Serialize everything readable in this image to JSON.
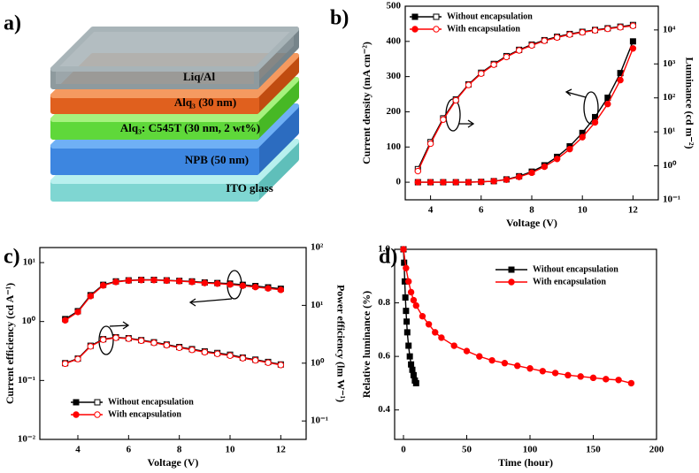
{
  "device": {
    "label": "a)",
    "layers": [
      "Liq/Al",
      "Alq₃ (30 nm)",
      "Alq₃: C545T (30 nm, 2 wt%)",
      "NPB (50 nm)",
      "ITO glass"
    ]
  },
  "chart_data": [
    {
      "type": "line",
      "label": "b)",
      "xlabel": "Voltage (V)",
      "ylabel": "Current density (mA cm⁻²)",
      "y2label": "Luminance (cd m⁻²)",
      "x": [
        3.5,
        4,
        4.5,
        5,
        5.5,
        6,
        6.5,
        7,
        7.5,
        8,
        8.5,
        9,
        9.5,
        10,
        10.5,
        11,
        11.5,
        12
      ],
      "xlim": [
        3,
        13
      ],
      "xticks": [
        4,
        6,
        8,
        10,
        12
      ],
      "xscale": "linear",
      "ylim": [
        -50,
        500
      ],
      "yticks": [
        0,
        100,
        200,
        300,
        400,
        500
      ],
      "yscale": "linear",
      "y2lim": [
        0.1,
        50000
      ],
      "y2scale": "log",
      "y2ticks": [
        {
          "value": 0.1,
          "label": "10⁻¹"
        },
        {
          "value": 1,
          "label": "10⁰"
        },
        {
          "value": 10,
          "label": "10¹"
        },
        {
          "value": 100,
          "label": "10²"
        },
        {
          "value": 1000,
          "label": "10³"
        },
        {
          "value": 10000,
          "label": "10⁴"
        }
      ],
      "legend": "upper left",
      "series": [
        {
          "name": "Without encapsulation",
          "color": "#000000",
          "marker": "square",
          "filled": true,
          "values": [
            0,
            0,
            0,
            0,
            0,
            1,
            3,
            8,
            17,
            30,
            48,
            72,
            102,
            140,
            185,
            240,
            310,
            400
          ]
        },
        {
          "name": "With encapsulation",
          "color": "#ff0000",
          "marker": "circle",
          "filled": true,
          "values": [
            0,
            0,
            0,
            0,
            0,
            1,
            3,
            7,
            15,
            27,
            44,
            66,
            94,
            128,
            170,
            222,
            290,
            380
          ]
        },
        {
          "name": "Without encapsulation",
          "color": "#000000",
          "marker": "square",
          "filled": false,
          "axis": "y2",
          "values": [
            0.8,
            5,
            25,
            90,
            250,
            550,
            1000,
            1700,
            2600,
            3700,
            5000,
            6300,
            7600,
            8800,
            10000,
            11200,
            12500,
            14000
          ]
        },
        {
          "name": "With encapsulation",
          "color": "#ff0000",
          "marker": "circle",
          "filled": false,
          "axis": "y2",
          "values": [
            0.7,
            4.5,
            23,
            85,
            240,
            520,
            950,
            1600,
            2500,
            3500,
            4800,
            6000,
            7300,
            8500,
            9700,
            10800,
            12000,
            13200
          ]
        }
      ]
    },
    {
      "type": "line",
      "label": "c)",
      "xlabel": "Voltage (V)",
      "ylabel": "Current efficiency (cd A⁻¹)",
      "y2label": "Power efficiency (lm W⁻¹)",
      "x": [
        3.5,
        4,
        4.5,
        5,
        5.5,
        6,
        6.5,
        7,
        7.5,
        8,
        8.5,
        9,
        9.5,
        10,
        10.5,
        11,
        11.5,
        12
      ],
      "xlim": [
        2.5,
        13
      ],
      "xticks": [
        4,
        6,
        8,
        10,
        12
      ],
      "xscale": "linear",
      "ylim": [
        0.01,
        18
      ],
      "yscale": "log",
      "yticks": [
        {
          "value": 0.01,
          "label": "10⁻²"
        },
        {
          "value": 0.1,
          "label": "10⁻¹"
        },
        {
          "value": 1,
          "label": "10⁰"
        },
        {
          "value": 10,
          "label": "10¹"
        }
      ],
      "y2lim": [
        0.048,
        100
      ],
      "y2scale": "log",
      "y2ticks": [
        {
          "value": 0.1,
          "label": "10⁻¹"
        },
        {
          "value": 1,
          "label": "10⁰"
        },
        {
          "value": 10,
          "label": "10¹"
        },
        {
          "value": 100,
          "label": "10²"
        }
      ],
      "legend": "lower left",
      "series": [
        {
          "name": "Without encapsulation",
          "color": "#000000",
          "marker": "square",
          "filled": true,
          "values": [
            1.1,
            1.5,
            2.8,
            4.2,
            4.8,
            5.0,
            5.1,
            5.1,
            5.0,
            4.9,
            4.8,
            4.6,
            4.5,
            4.4,
            4.2,
            4.0,
            3.8,
            3.6
          ]
        },
        {
          "name": "With encapsulation",
          "color": "#ff0000",
          "marker": "circle",
          "filled": true,
          "values": [
            1.05,
            1.45,
            2.7,
            4.1,
            4.7,
            4.95,
            5.05,
            5.05,
            4.95,
            4.85,
            4.7,
            4.5,
            4.4,
            4.25,
            4.05,
            3.85,
            3.65,
            3.45
          ]
        },
        {
          "name": "Without encapsulation",
          "color": "#000000",
          "marker": "square",
          "filled": false,
          "axis": "y2",
          "values": [
            1.0,
            1.2,
            2.0,
            2.6,
            2.8,
            2.7,
            2.5,
            2.3,
            2.1,
            1.9,
            1.75,
            1.6,
            1.5,
            1.4,
            1.25,
            1.15,
            1.05,
            0.95
          ]
        },
        {
          "name": "With encapsulation",
          "color": "#ff0000",
          "marker": "circle",
          "filled": false,
          "axis": "y2",
          "values": [
            0.98,
            1.18,
            1.95,
            2.55,
            2.75,
            2.65,
            2.45,
            2.25,
            2.05,
            1.85,
            1.7,
            1.55,
            1.45,
            1.35,
            1.22,
            1.12,
            1.02,
            0.93
          ]
        }
      ]
    },
    {
      "type": "line",
      "label": "d)",
      "xlabel": "Time (hour)",
      "ylabel": "Relative luminance (%)",
      "xlim": [
        -7,
        200
      ],
      "xticks": [
        0,
        50,
        100,
        150,
        200
      ],
      "xscale": "linear",
      "ylim": [
        0.29,
        1.0
      ],
      "yticks": [
        0.4,
        0.6,
        0.8,
        {
          "value": 1.0,
          "label": "1.0"
        }
      ],
      "yscale": "linear",
      "legend": "upper right",
      "series": [
        {
          "name": "Without encapsulation",
          "color": "#000000",
          "marker": "square",
          "filled": true,
          "x": [
            0,
            0.5,
            1,
            1.5,
            2,
            2.5,
            3,
            4,
            5,
            6,
            7,
            8,
            9,
            10
          ],
          "values": [
            1.0,
            0.95,
            0.88,
            0.82,
            0.77,
            0.73,
            0.69,
            0.64,
            0.6,
            0.57,
            0.55,
            0.53,
            0.51,
            0.5
          ]
        },
        {
          "name": "With encapsulation",
          "color": "#ff0000",
          "marker": "circle",
          "filled": true,
          "x": [
            0,
            2,
            4,
            6,
            8,
            10,
            15,
            20,
            25,
            30,
            40,
            50,
            60,
            70,
            80,
            90,
            100,
            110,
            120,
            130,
            140,
            150,
            160,
            170,
            180
          ],
          "values": [
            1.0,
            0.93,
            0.88,
            0.84,
            0.81,
            0.79,
            0.75,
            0.72,
            0.69,
            0.67,
            0.64,
            0.62,
            0.6,
            0.585,
            0.575,
            0.565,
            0.555,
            0.545,
            0.538,
            0.53,
            0.525,
            0.52,
            0.515,
            0.512,
            0.5
          ]
        }
      ]
    }
  ]
}
